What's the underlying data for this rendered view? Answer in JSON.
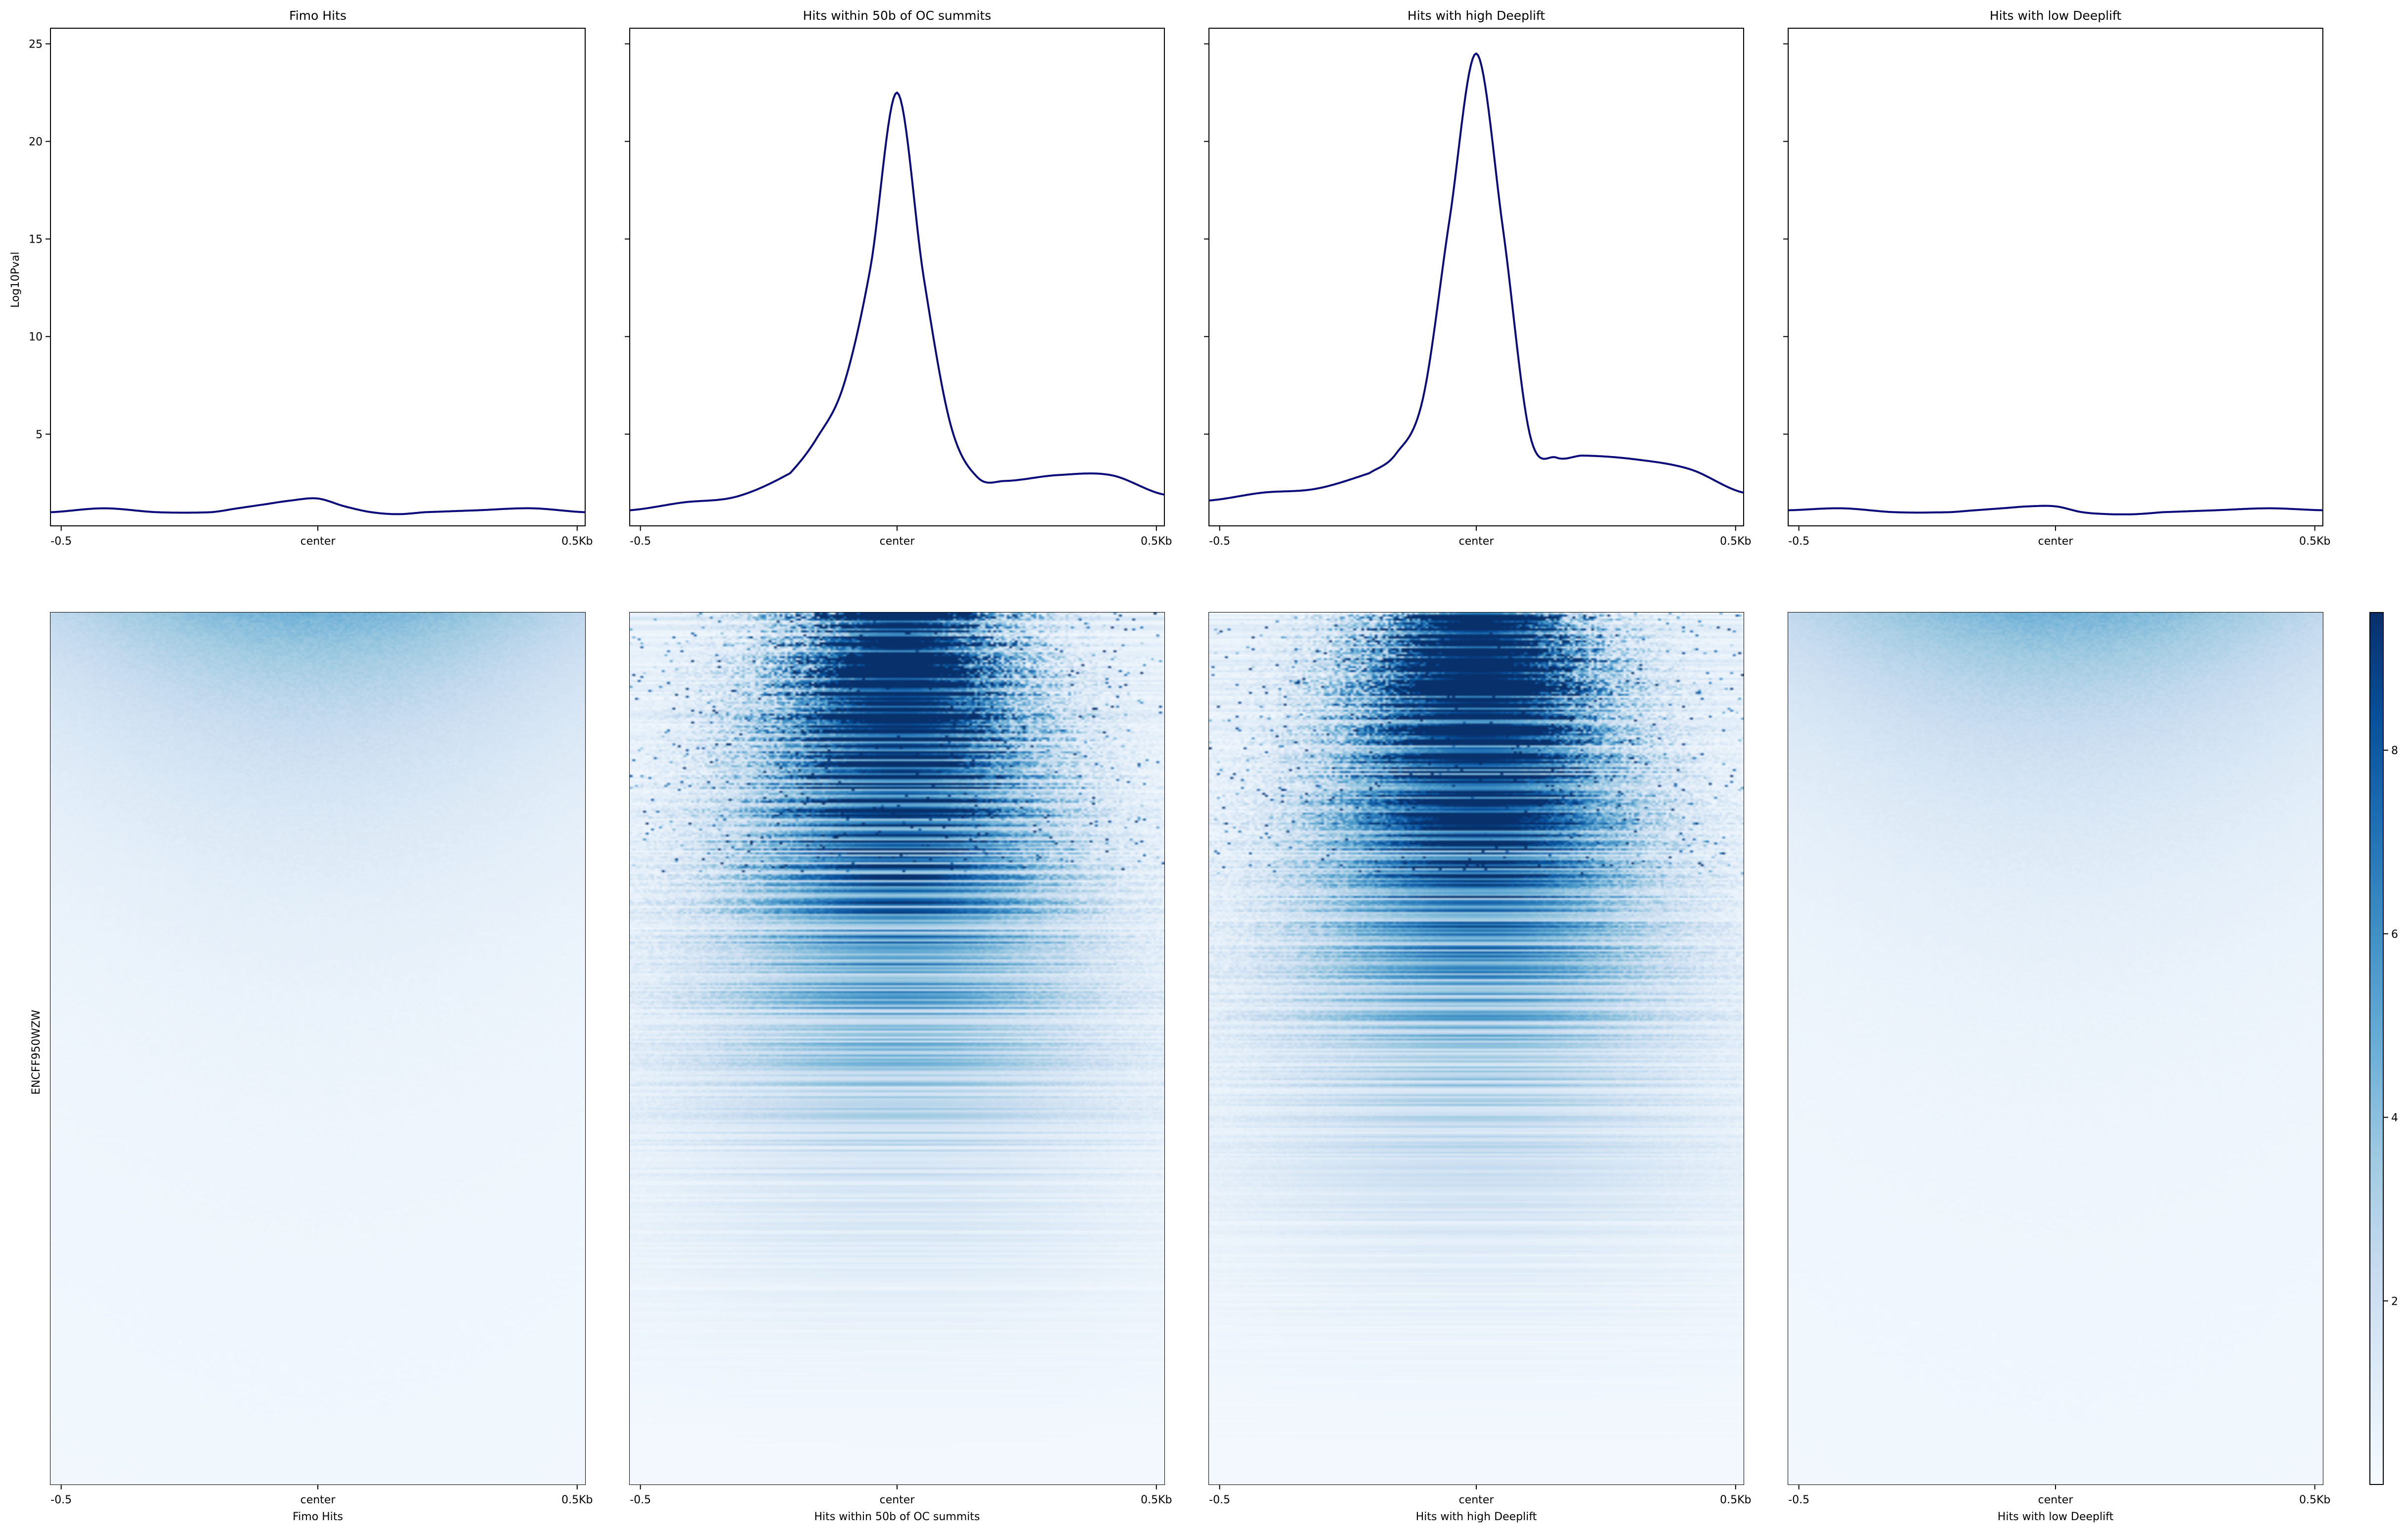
{
  "chart_data": {
    "type": "line",
    "description_panels": "profile plots (top) and heatmaps (bottom) for four hit groups",
    "profile": {
      "ylabel": "Log10Pval",
      "ylim": [
        0.3,
        25.8
      ],
      "yticks": [
        5,
        10,
        15,
        20,
        25
      ],
      "x_tick_labels": [
        "-0.5",
        "center",
        "0.5Kb"
      ],
      "x": [
        -0.5,
        -0.4,
        -0.3,
        -0.2,
        -0.15,
        -0.1,
        -0.05,
        0.0,
        0.05,
        0.1,
        0.15,
        0.2,
        0.3,
        0.4,
        0.5
      ],
      "panels": [
        {
          "title": "Fimo Hits",
          "values": [
            1.0,
            1.2,
            1.0,
            1.0,
            1.2,
            1.4,
            1.6,
            1.7,
            1.3,
            1.0,
            0.9,
            1.0,
            1.1,
            1.2,
            1.0
          ]
        },
        {
          "title": "Hits within 50b of OC summits",
          "values": [
            1.1,
            1.5,
            1.8,
            3.0,
            4.8,
            7.5,
            13.5,
            22.5,
            13.0,
            5.5,
            2.8,
            2.6,
            2.9,
            2.9,
            1.9
          ]
        },
        {
          "title": "Hits with high Deeplift",
          "values": [
            1.6,
            2.0,
            2.2,
            3.0,
            4.0,
            6.8,
            16.0,
            24.5,
            15.5,
            5.0,
            3.8,
            3.9,
            3.7,
            3.2,
            2.0
          ]
        },
        {
          "title": "Hits with low Deeplift",
          "values": [
            1.1,
            1.2,
            1.0,
            1.0,
            1.1,
            1.2,
            1.3,
            1.3,
            1.0,
            0.9,
            0.9,
            1.0,
            1.1,
            1.2,
            1.1
          ]
        }
      ],
      "line_color": "#0a0a7a"
    },
    "heatmap": {
      "ylabel": "ENCFF950WZW",
      "x_tick_labels": [
        "-0.5",
        "center",
        "0.5Kb"
      ],
      "xlabels": [
        "Fimo Hits",
        "Hits within 50b of OC summits",
        "Hits with high Deeplift",
        "Hits with low Deeplift"
      ],
      "colorbar": {
        "ticks": [
          2,
          4,
          6,
          8
        ],
        "range": [
          0,
          9.5
        ],
        "cmap": "Blues"
      }
    }
  }
}
